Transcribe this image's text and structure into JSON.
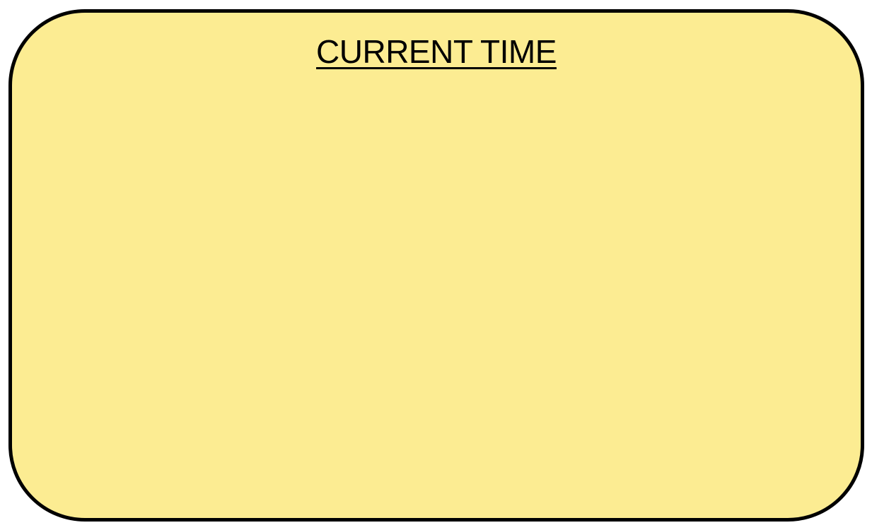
{
  "card": {
    "title": "CURRENT TIME",
    "background_color": "#fcec92",
    "border_color": "#000000"
  }
}
